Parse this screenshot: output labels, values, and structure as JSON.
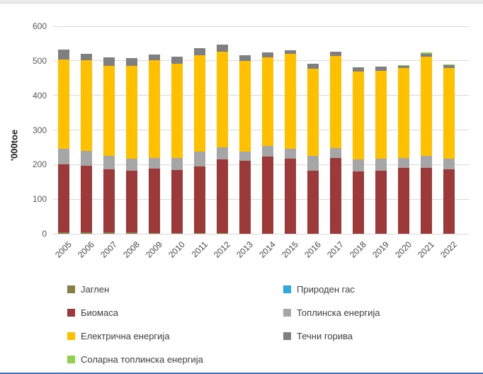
{
  "chart_data": {
    "type": "bar",
    "stacked": true,
    "title": "",
    "xlabel": "",
    "ylabel": "'000toe",
    "ylim": [
      0,
      600
    ],
    "yticks": [
      0,
      100,
      200,
      300,
      400,
      500,
      600
    ],
    "grid": true,
    "categories": [
      "2005",
      "2006",
      "2007",
      "2008",
      "2009",
      "2010",
      "2011",
      "2012",
      "2013",
      "2014",
      "2015",
      "2016",
      "2017",
      "2018",
      "2019",
      "2020",
      "2021",
      "2022"
    ],
    "series": [
      {
        "name": "Јаглен",
        "color": "#8a7e46",
        "values": [
          5,
          5,
          4,
          4,
          2,
          2,
          2,
          2,
          1,
          1,
          0,
          0,
          0,
          0,
          0,
          0,
          0,
          0
        ]
      },
      {
        "name": "Природен гас",
        "color": "#2fa8df",
        "values": [
          0,
          0,
          0,
          0,
          0,
          0,
          0,
          0,
          0,
          0,
          0,
          0,
          0,
          0,
          0,
          0,
          0,
          0
        ]
      },
      {
        "name": "Биомаса",
        "color": "#9c3a3a",
        "values": [
          195,
          192,
          182,
          178,
          186,
          182,
          193,
          213,
          210,
          223,
          217,
          183,
          219,
          180,
          182,
          190,
          190,
          186
        ]
      },
      {
        "name": "Топлинска енергија",
        "color": "#a6a6a6",
        "values": [
          46,
          43,
          39,
          35,
          31,
          35,
          43,
          34,
          27,
          29,
          29,
          42,
          28,
          35,
          35,
          30,
          35,
          31
        ]
      },
      {
        "name": "Електрична енергија",
        "color": "#ffc000",
        "values": [
          257,
          262,
          261,
          269,
          283,
          273,
          279,
          277,
          262,
          257,
          274,
          252,
          267,
          254,
          254,
          260,
          287,
          263
        ]
      },
      {
        "name": "Течни горива",
        "color": "#7f7f7f",
        "values": [
          30,
          18,
          23,
          21,
          17,
          20,
          20,
          20,
          17,
          14,
          11,
          15,
          13,
          12,
          12,
          6,
          8,
          7
        ]
      },
      {
        "name": "Соларна топлинска енергија",
        "color": "#92d050",
        "values": [
          0,
          0,
          0,
          0,
          0,
          0,
          0,
          0,
          0,
          0,
          0,
          0,
          0,
          0,
          0,
          2,
          4,
          3
        ]
      }
    ],
    "legend": {
      "position": "bottom",
      "columns": [
        [
          "Јаглен",
          "Биомаса",
          "Електрична енергија",
          "Соларна топлинска енергија"
        ],
        [
          "Природен гас",
          "Топлинска енергија",
          "Течни горива"
        ]
      ]
    },
    "colors": {
      "gridline": "#d9d9d9",
      "tick_label": "#595959",
      "category_label": "#474747",
      "legend_label": "#404040",
      "bottom_accent": "#4472c4"
    }
  }
}
